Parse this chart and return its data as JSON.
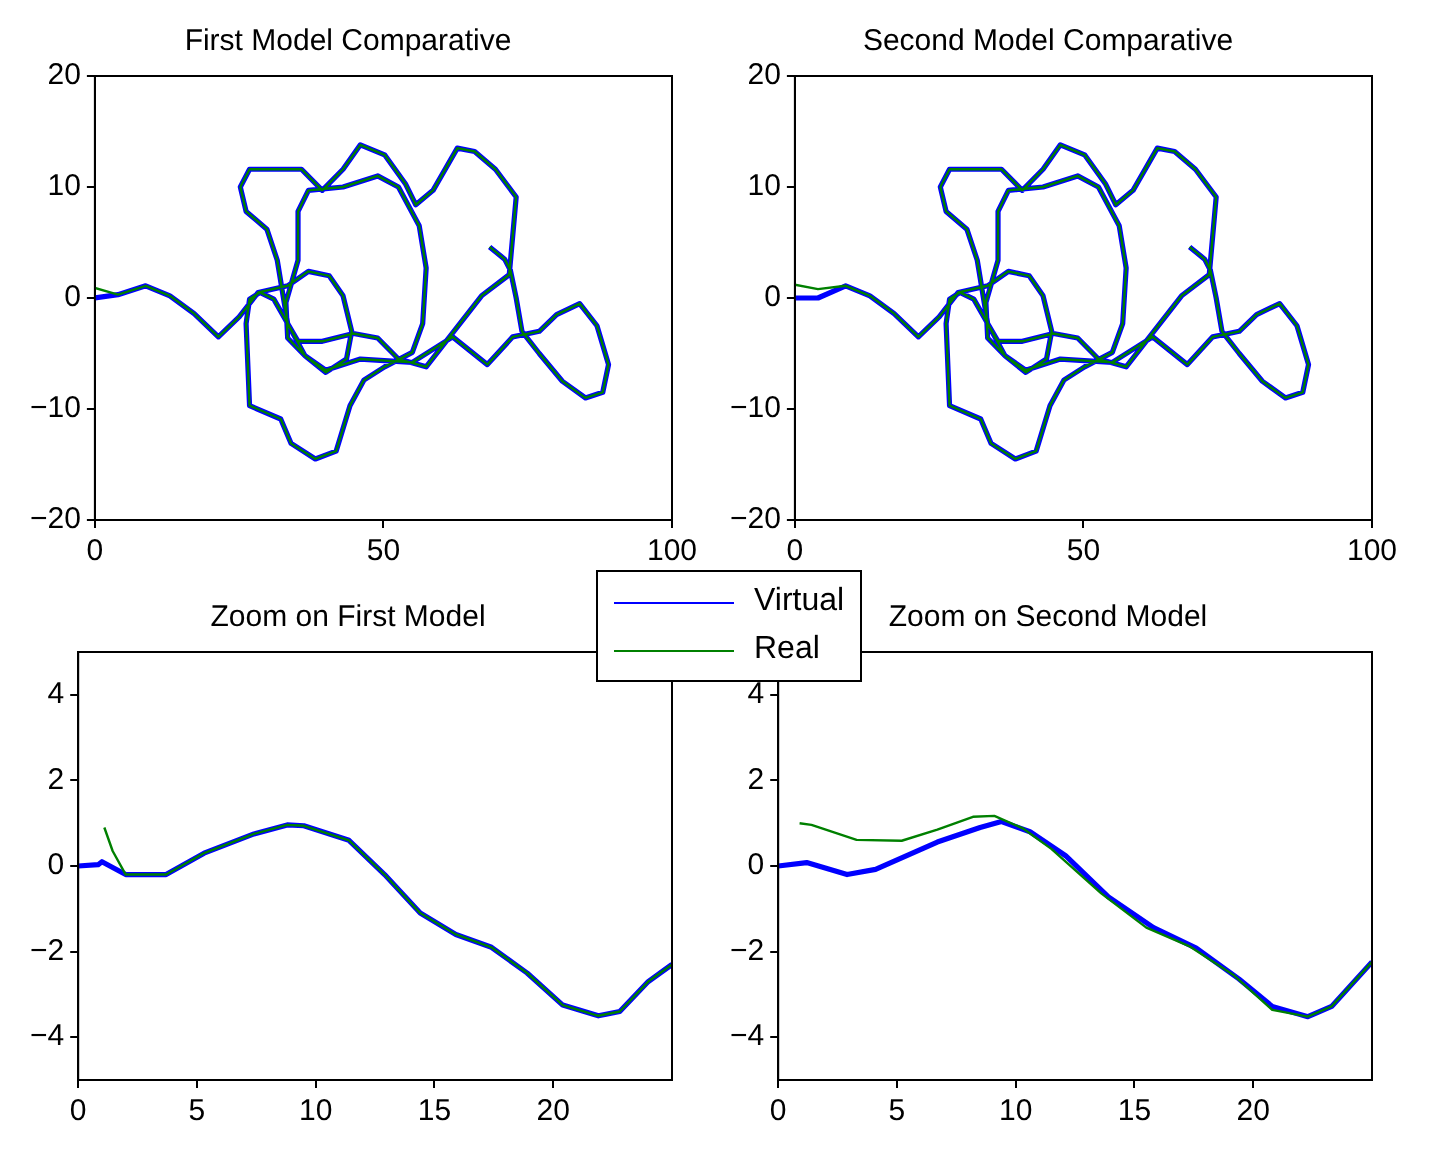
{
  "chart_data": [
    {
      "type": "line",
      "title": "First Model Comparative",
      "legend": "bottom right",
      "xlim": [
        0,
        100
      ],
      "xticks": [
        0,
        50,
        100
      ],
      "ylim": [
        -20,
        20
      ],
      "yticks": [
        -20,
        -10,
        0,
        10,
        20
      ],
      "series": [
        {
          "name": "Virtual",
          "color": "#0000ff",
          "x": [
            0,
            4,
            8.8,
            13,
            17.2,
            21.4,
            25,
            28.3,
            33.4,
            37,
            40.6,
            43,
            44.5,
            43.6,
            40,
            36.4,
            33.4,
            33.1,
            35.2,
            35.2,
            37,
            43,
            49,
            52.6,
            56.2,
            57.4,
            56.8,
            55,
            50.2,
            46.6,
            44.2,
            41.8,
            38.2,
            34,
            32.2,
            26.8,
            26.2,
            26.8,
            28.6,
            31,
            33.4,
            35.2,
            39.4,
            44.8,
            49,
            52.6,
            57.4,
            62.2,
            67,
            71.8,
            73,
            69.4,
            65.8,
            62.8,
            58.6,
            55.6,
            53.8,
            50.2,
            46,
            43,
            39.4,
            35.8,
            32.2,
            26.8,
            25.2,
            26.2,
            29.8,
            31.6,
            33.4,
            36.4,
            40,
            46,
            55,
            62,
            68,
            72.4,
            77,
            80,
            84,
            87,
            89,
            88,
            85,
            81,
            77,
            74,
            73,
            72,
            71,
            68.4
          ],
          "values": [
            0,
            0.3,
            1.1,
            0.2,
            -1.4,
            -3.5,
            -1.7,
            0.5,
            1.1,
            2.4,
            2,
            0.2,
            -3,
            -5.5,
            -6.7,
            -5.2,
            -3.6,
            -0.4,
            3.4,
            7.8,
            9.7,
            10,
            11,
            10,
            6.5,
            2.7,
            -2.3,
            -4.9,
            -6.2,
            -7.4,
            -9.7,
            -13.8,
            -14.5,
            -13.1,
            -10.9,
            -9.7,
            -2.3,
            -0.1,
            0.5,
            -0.1,
            -2.3,
            -3.9,
            -3.9,
            -3.2,
            -3.6,
            -5.5,
            -6.2,
            -3,
            0.2,
            2.1,
            9.1,
            11.6,
            13.2,
            13.5,
            9.7,
            8.4,
            10.3,
            12.9,
            13.8,
            11.6,
            9.7,
            11.6,
            11.6,
            11.6,
            10,
            7.8,
            6.2,
            3.4,
            -2.3,
            -5.2,
            -6.5,
            -5.5,
            -5.8,
            -3.5,
            -6,
            -3.5,
            -3,
            -1.5,
            -0.5,
            -2.5,
            -6,
            -8.5,
            -9,
            -7.5,
            -5,
            -3,
            0,
            2.5,
            3.5,
            4.6
          ]
        },
        {
          "name": "Real",
          "color": "#008000",
          "x": [
            0,
            4,
            8.8,
            13,
            17.2,
            21.4,
            25,
            28.3,
            33.4,
            37,
            40.6,
            43,
            44.5,
            43.6,
            40,
            36.4,
            33.4,
            33.1,
            35.2,
            35.2,
            37,
            43,
            49,
            52.6,
            56.2,
            57.4,
            56.8,
            55,
            50.2,
            46.6,
            44.2,
            41.8,
            38.2,
            34,
            32.2,
            26.8,
            26.2,
            26.8,
            28.6,
            31,
            33.4,
            35.2,
            39.4,
            44.8,
            49,
            52.6,
            57.4,
            62.2,
            67,
            71.8,
            73,
            69.4,
            65.8,
            62.8,
            58.6,
            55.6,
            53.8,
            50.2,
            46,
            43,
            39.4,
            35.8,
            32.2,
            26.8,
            25.2,
            26.2,
            29.8,
            31.6,
            33.4,
            36.4,
            40,
            46,
            55,
            62,
            68,
            72.4,
            77,
            80,
            84,
            87,
            89,
            88,
            85,
            81,
            77,
            74,
            73,
            72,
            71,
            68.4
          ],
          "values": [
            0.9,
            0.3,
            1.1,
            0.2,
            -1.4,
            -3.5,
            -1.7,
            0.5,
            1.1,
            2.4,
            2,
            0.2,
            -3,
            -5.5,
            -6.7,
            -5.2,
            -3.6,
            -0.4,
            3.4,
            7.8,
            9.7,
            10,
            11,
            10,
            6.5,
            2.7,
            -2.3,
            -4.9,
            -6.2,
            -7.4,
            -9.7,
            -13.8,
            -14.5,
            -13.1,
            -10.9,
            -9.7,
            -2.3,
            -0.1,
            0.5,
            -0.1,
            -2.3,
            -3.9,
            -3.9,
            -3.2,
            -3.6,
            -5.5,
            -6.2,
            -3,
            0.2,
            2.1,
            9.1,
            11.6,
            13.2,
            13.5,
            9.7,
            8.4,
            10.3,
            12.9,
            13.8,
            11.6,
            9.7,
            11.6,
            11.6,
            11.6,
            10,
            7.8,
            6.2,
            3.4,
            -2.3,
            -5.2,
            -6.5,
            -5.5,
            -5.8,
            -3.5,
            -6,
            -3.5,
            -3,
            -1.5,
            -0.5,
            -2.5,
            -6,
            -8.5,
            -9,
            -7.5,
            -5,
            -3,
            0,
            2.5,
            3.5,
            4.6
          ]
        }
      ]
    },
    {
      "type": "line",
      "title": "Second Model Comparative",
      "xlim": [
        0,
        100
      ],
      "xticks": [
        0,
        50,
        100
      ],
      "ylim": [
        -20,
        20
      ],
      "yticks": [
        -20,
        -10,
        0,
        10,
        20
      ],
      "series": [
        {
          "color": "#0000ff",
          "x": [
            0,
            4,
            8.8,
            13,
            17.2,
            21.4,
            25,
            28.3,
            33.4,
            37,
            40.6,
            43,
            44.5,
            43.6,
            40,
            36.4,
            33.4,
            33.1,
            35.2,
            35.2,
            37,
            43,
            49,
            52.6,
            56.2,
            57.4,
            56.8,
            55,
            50.2,
            46.6,
            44.2,
            41.8,
            38.2,
            34,
            32.2,
            26.8,
            26.2,
            26.8,
            28.6,
            31,
            33.4,
            35.2,
            39.4,
            44.8,
            49,
            52.6,
            57.4,
            62.2,
            67,
            71.8,
            73,
            69.4,
            65.8,
            62.8,
            58.6,
            55.6,
            53.8,
            50.2,
            46,
            43,
            39.4,
            35.8,
            32.2,
            26.8,
            25.2,
            26.2,
            29.8,
            31.6,
            33.4,
            36.4,
            40,
            46,
            55,
            62,
            68,
            72.4,
            77,
            80,
            84,
            87,
            89,
            88,
            85,
            81,
            77,
            74,
            73,
            72,
            71,
            68.4
          ],
          "values": [
            0,
            0,
            1.1,
            0.2,
            -1.4,
            -3.5,
            -1.7,
            0.5,
            1.1,
            2.4,
            2,
            0.2,
            -3,
            -5.5,
            -6.7,
            -5.2,
            -3.6,
            -0.4,
            3.4,
            7.8,
            9.7,
            10,
            11,
            10,
            6.5,
            2.7,
            -2.3,
            -4.9,
            -6.2,
            -7.4,
            -9.7,
            -13.8,
            -14.5,
            -13.1,
            -10.9,
            -9.7,
            -2.3,
            -0.1,
            0.5,
            -0.1,
            -2.3,
            -3.9,
            -3.9,
            -3.2,
            -3.6,
            -5.5,
            -6.2,
            -3,
            0.2,
            2.1,
            9.1,
            11.6,
            13.2,
            13.5,
            9.7,
            8.4,
            10.3,
            12.9,
            13.8,
            11.6,
            9.7,
            11.6,
            11.6,
            11.6,
            10,
            7.8,
            6.2,
            3.4,
            -2.3,
            -5.2,
            -6.5,
            -5.5,
            -5.8,
            -3.5,
            -6,
            -3.5,
            -3,
            -1.5,
            -0.5,
            -2.5,
            -6,
            -8.5,
            -9,
            -7.5,
            -5,
            -3,
            0,
            2.5,
            3.5,
            4.6
          ]
        },
        {
          "color": "#008000",
          "x": [
            0,
            4,
            8.8,
            13,
            17.2,
            21.4,
            25,
            28.3,
            33.4,
            37,
            40.6,
            43,
            44.5,
            43.6,
            40,
            36.4,
            33.4,
            33.1,
            35.2,
            35.2,
            37,
            43,
            49,
            52.6,
            56.2,
            57.4,
            56.8,
            55,
            50.2,
            46.6,
            44.2,
            41.8,
            38.2,
            34,
            32.2,
            26.8,
            26.2,
            26.8,
            28.6,
            31,
            33.4,
            35.2,
            39.4,
            44.8,
            49,
            52.6,
            57.4,
            62.2,
            67,
            71.8,
            73,
            69.4,
            65.8,
            62.8,
            58.6,
            55.6,
            53.8,
            50.2,
            46,
            43,
            39.4,
            35.8,
            32.2,
            26.8,
            25.2,
            26.2,
            29.8,
            31.6,
            33.4,
            36.4,
            40,
            46,
            55,
            62,
            68,
            72.4,
            77,
            80,
            84,
            87,
            89,
            88,
            85,
            81,
            77,
            74,
            73,
            72,
            71,
            68.4
          ],
          "values": [
            1.2,
            0.8,
            1.1,
            0.2,
            -1.4,
            -3.5,
            -1.7,
            0.5,
            1.1,
            2.4,
            2,
            0.2,
            -3,
            -5.5,
            -6.7,
            -5.2,
            -3.6,
            -0.4,
            3.4,
            7.8,
            9.7,
            10,
            11,
            10,
            6.5,
            2.7,
            -2.3,
            -4.9,
            -6.2,
            -7.4,
            -9.7,
            -13.8,
            -14.5,
            -13.1,
            -10.9,
            -9.7,
            -2.3,
            -0.1,
            0.5,
            -0.1,
            -2.3,
            -3.9,
            -3.9,
            -3.2,
            -3.6,
            -5.5,
            -6.2,
            -3,
            0.2,
            2.1,
            9.1,
            11.6,
            13.2,
            13.5,
            9.7,
            8.4,
            10.3,
            12.9,
            13.8,
            11.6,
            9.7,
            11.6,
            11.6,
            11.6,
            10,
            7.8,
            6.2,
            3.4,
            -2.3,
            -5.2,
            -6.5,
            -5.5,
            -5.8,
            -3.5,
            -6,
            -3.5,
            -3,
            -1.5,
            -0.5,
            -2.5,
            -6,
            -8.5,
            -9,
            -7.5,
            -5,
            -3,
            0,
            2.5,
            3.5,
            4.6
          ]
        }
      ]
    },
    {
      "type": "line",
      "title": "Zoom on First Model",
      "xlim": [
        0,
        25
      ],
      "xticks": [
        0,
        5,
        10,
        15,
        20
      ],
      "ylim": [
        -5,
        5
      ],
      "yticks": [
        -4,
        -2,
        0,
        2,
        4
      ],
      "series": [
        {
          "color": "#0000ff",
          "x": [
            0,
            0.84,
            1,
            2,
            3.7,
            5.3,
            7.4,
            8.8,
            9.5,
            11.4,
            12.9,
            14.4,
            15.9,
            17.4,
            18.9,
            20.4,
            21.9,
            22.8,
            24,
            25
          ],
          "values": [
            0,
            0.03,
            0.1,
            -0.2,
            -0.2,
            0.3,
            0.75,
            0.96,
            0.94,
            0.6,
            -0.2,
            -1.1,
            -1.6,
            -1.9,
            -2.5,
            -3.25,
            -3.5,
            -3.4,
            -2.7,
            -2.3
          ]
        },
        {
          "color": "#008000",
          "x": [
            1.1,
            1.45,
            2,
            3.7,
            5.3,
            7.4,
            8.8,
            9.5,
            11.4,
            12.9,
            14.4,
            15.9,
            17.4,
            18.9,
            20.4,
            21.9,
            22.8,
            24,
            25
          ],
          "values": [
            0.9,
            0.35,
            -0.2,
            -0.2,
            0.3,
            0.75,
            0.96,
            0.94,
            0.6,
            -0.2,
            -1.1,
            -1.6,
            -1.9,
            -2.5,
            -3.25,
            -3.5,
            -3.4,
            -2.7,
            -2.3
          ]
        }
      ]
    },
    {
      "type": "line",
      "title": "Zoom on Second Model",
      "xlim": [
        0,
        25
      ],
      "xticks": [
        0,
        5,
        10,
        15,
        20
      ],
      "ylim": [
        -5,
        5
      ],
      "yticks": [
        -4,
        -2,
        0,
        2,
        4
      ],
      "series": [
        {
          "color": "#0000ff",
          "x": [
            0,
            1.2,
            2.9,
            4.1,
            6.7,
            8.5,
            9.4,
            10.6,
            12.1,
            13.9,
            15.8,
            17.6,
            19.4,
            20.8,
            22.3,
            23.3,
            25
          ],
          "values": [
            0,
            0.08,
            -0.2,
            -0.08,
            0.56,
            0.9,
            1.04,
            0.8,
            0.24,
            -0.72,
            -1.44,
            -1.92,
            -2.64,
            -3.28,
            -3.52,
            -3.28,
            -2.24
          ]
        },
        {
          "color": "#008000",
          "x": [
            0.9,
            1.4,
            3.3,
            5.2,
            6.7,
            8.2,
            9.1,
            10.3,
            11.5,
            13.6,
            15.5,
            17.3,
            19.2,
            20.8,
            22.3,
            23.3,
            25
          ],
          "values": [
            1,
            0.96,
            0.61,
            0.59,
            0.85,
            1.15,
            1.17,
            0.88,
            0.4,
            -0.64,
            -1.44,
            -1.87,
            -2.56,
            -3.36,
            -3.52,
            -3.28,
            -2.24
          ]
        }
      ]
    }
  ]
}
